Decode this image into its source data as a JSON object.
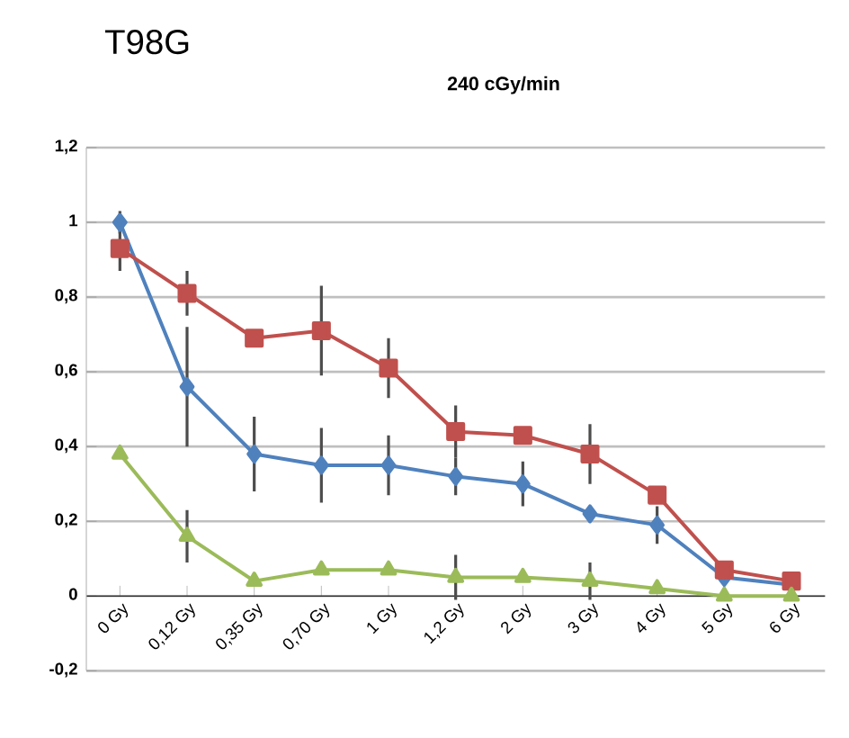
{
  "chart_data": {
    "type": "line",
    "title": "T98G",
    "subtitle": "240 cGy/min",
    "categories": [
      "0 Gy",
      "0,12 Gy",
      "0,35 Gy",
      "0,70 Gy",
      "1 Gy",
      "1,2 Gy",
      "2 Gy",
      "3 Gy",
      "4 Gy",
      "5 Gy",
      "6 Gy"
    ],
    "ylim": [
      -0.2,
      1.2
    ],
    "yticks": [
      {
        "value": -0.2,
        "label": "-0,2"
      },
      {
        "value": 0,
        "label": "0"
      },
      {
        "value": 0.2,
        "label": "0,2"
      },
      {
        "value": 0.4,
        "label": "0,4"
      },
      {
        "value": 0.6,
        "label": "0,6"
      },
      {
        "value": 0.8,
        "label": "0,8"
      },
      {
        "value": 1,
        "label": "1"
      },
      {
        "value": 1.2,
        "label": "1,2"
      }
    ],
    "grid": "y",
    "series": [
      {
        "color": "#4f81bd",
        "marker": "diamond",
        "values": [
          1.0,
          0.56,
          0.38,
          0.35,
          0.35,
          0.32,
          0.3,
          0.22,
          0.19,
          0.05,
          0.03
        ],
        "errors": [
          0.03,
          0.16,
          0.1,
          0.1,
          0.08,
          0.05,
          0.06,
          0.02,
          0.05,
          null,
          null
        ]
      },
      {
        "color": "#c0504d",
        "marker": "square",
        "values": [
          0.93,
          0.81,
          0.69,
          0.71,
          0.61,
          0.44,
          0.43,
          0.38,
          0.27,
          0.07,
          0.04
        ],
        "errors": [
          0.06,
          0.06,
          null,
          0.12,
          0.08,
          0.07,
          null,
          0.08,
          null,
          null,
          null
        ]
      },
      {
        "color": "#9bbb59",
        "marker": "triangle",
        "values": [
          0.38,
          0.16,
          0.04,
          0.07,
          0.07,
          0.05,
          0.05,
          0.04,
          0.02,
          0.0,
          0.0
        ],
        "errors": [
          null,
          0.07,
          null,
          null,
          null,
          0.06,
          null,
          0.05,
          null,
          null,
          null
        ]
      }
    ]
  }
}
